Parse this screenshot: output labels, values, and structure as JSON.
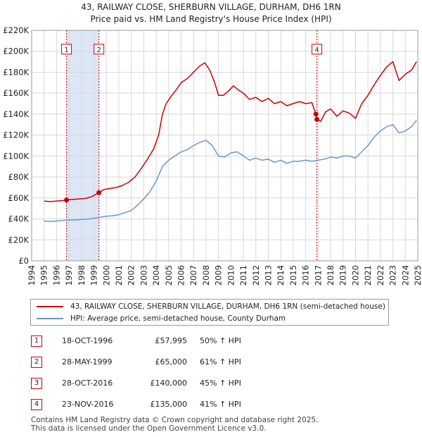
{
  "title": {
    "line1": "43, RAILWAY CLOSE, SHERBURN VILLAGE, DURHAM, DH6 1RN",
    "line2": "Price paid vs. HM Land Registry's House Price Index (HPI)"
  },
  "colors": {
    "property": "#cc0000",
    "hpi": "#6a96cc",
    "shade": "#dde6f5",
    "grid": "#d8d8d8",
    "marker_border": "#cc0000"
  },
  "chart_data": {
    "type": "line",
    "xlim": [
      1994,
      2025
    ],
    "ylim": [
      0,
      220000
    ],
    "x_ticks": [
      "1994",
      "1995",
      "1996",
      "1997",
      "1998",
      "1999",
      "2000",
      "2001",
      "2002",
      "2003",
      "2004",
      "2005",
      "2006",
      "2007",
      "2008",
      "2009",
      "2010",
      "2011",
      "2012",
      "2013",
      "2014",
      "2015",
      "2016",
      "2017",
      "2018",
      "2019",
      "2020",
      "2021",
      "2022",
      "2023",
      "2024",
      "2025"
    ],
    "y_ticks": [
      {
        "value": 0,
        "label": "£0"
      },
      {
        "value": 20000,
        "label": "£20K"
      },
      {
        "value": 40000,
        "label": "£40K"
      },
      {
        "value": 60000,
        "label": "£60K"
      },
      {
        "value": 80000,
        "label": "£80K"
      },
      {
        "value": 100000,
        "label": "£100K"
      },
      {
        "value": 120000,
        "label": "£120K"
      },
      {
        "value": 140000,
        "label": "£140K"
      },
      {
        "value": 160000,
        "label": "£160K"
      },
      {
        "value": 180000,
        "label": "£180K"
      },
      {
        "value": 200000,
        "label": "£200K"
      },
      {
        "value": 220000,
        "label": "£220K"
      }
    ],
    "shaded_range": [
      1996.8,
      1999.4
    ],
    "events": [
      {
        "num": "1",
        "x": 1996.8,
        "label_y": 202000
      },
      {
        "num": "2",
        "x": 1999.4,
        "label_y": 202000
      },
      {
        "num": "4",
        "x": 2016.9,
        "label_y": 202000
      }
    ],
    "sales": [
      {
        "x": 1996.8,
        "y": 57995
      },
      {
        "x": 1999.4,
        "y": 65000
      },
      {
        "x": 2016.82,
        "y": 140000
      },
      {
        "x": 2016.9,
        "y": 135000
      }
    ],
    "series": [
      {
        "name": "43, RAILWAY CLOSE, SHERBURN VILLAGE, DURHAM, DH6 1RN (semi-detached house)",
        "color_key": "property",
        "points": [
          [
            1995.0,
            57000
          ],
          [
            1995.5,
            56500
          ],
          [
            1996.0,
            57000
          ],
          [
            1996.5,
            57500
          ],
          [
            1996.8,
            57995
          ],
          [
            1997.3,
            58500
          ],
          [
            1997.8,
            59000
          ],
          [
            1998.3,
            59500
          ],
          [
            1998.8,
            61000
          ],
          [
            1999.4,
            65000
          ],
          [
            1999.8,
            68000
          ],
          [
            2000.3,
            69000
          ],
          [
            2000.8,
            70000
          ],
          [
            2001.3,
            72000
          ],
          [
            2001.8,
            75000
          ],
          [
            2002.3,
            80000
          ],
          [
            2002.8,
            88000
          ],
          [
            2003.3,
            97000
          ],
          [
            2003.8,
            107000
          ],
          [
            2004.2,
            120000
          ],
          [
            2004.5,
            140000
          ],
          [
            2004.8,
            150000
          ],
          [
            2005.2,
            157000
          ],
          [
            2005.6,
            163000
          ],
          [
            2006.0,
            170000
          ],
          [
            2006.5,
            174000
          ],
          [
            2007.0,
            180000
          ],
          [
            2007.5,
            186000
          ],
          [
            2007.9,
            189000
          ],
          [
            2008.3,
            182000
          ],
          [
            2008.7,
            170000
          ],
          [
            2009.0,
            158000
          ],
          [
            2009.4,
            158000
          ],
          [
            2009.8,
            162000
          ],
          [
            2010.2,
            167000
          ],
          [
            2010.6,
            163000
          ],
          [
            2011.0,
            160000
          ],
          [
            2011.5,
            154000
          ],
          [
            2012.0,
            156000
          ],
          [
            2012.5,
            152000
          ],
          [
            2013.0,
            155000
          ],
          [
            2013.5,
            150000
          ],
          [
            2014.0,
            152000
          ],
          [
            2014.5,
            148000
          ],
          [
            2015.0,
            150000
          ],
          [
            2015.5,
            152000
          ],
          [
            2016.0,
            150000
          ],
          [
            2016.5,
            151000
          ],
          [
            2016.82,
            140000
          ],
          [
            2016.9,
            135000
          ],
          [
            2017.2,
            133000
          ],
          [
            2017.6,
            142000
          ],
          [
            2018.0,
            145000
          ],
          [
            2018.5,
            138000
          ],
          [
            2019.0,
            143000
          ],
          [
            2019.5,
            141000
          ],
          [
            2020.0,
            136000
          ],
          [
            2020.5,
            150000
          ],
          [
            2021.0,
            158000
          ],
          [
            2021.5,
            168000
          ],
          [
            2022.0,
            177000
          ],
          [
            2022.5,
            185000
          ],
          [
            2023.0,
            190000
          ],
          [
            2023.5,
            172000
          ],
          [
            2024.0,
            178000
          ],
          [
            2024.5,
            182000
          ],
          [
            2024.9,
            190000
          ]
        ]
      },
      {
        "name": "HPI: Average price, semi-detached house, County Durham",
        "color_key": "hpi",
        "points": [
          [
            1995.0,
            38000
          ],
          [
            1995.5,
            37500
          ],
          [
            1996.0,
            38000
          ],
          [
            1996.5,
            38500
          ],
          [
            1997.0,
            39000
          ],
          [
            1997.5,
            39000
          ],
          [
            1998.0,
            39500
          ],
          [
            1998.5,
            39800
          ],
          [
            1999.0,
            40500
          ],
          [
            1999.5,
            41500
          ],
          [
            2000.0,
            42500
          ],
          [
            2000.5,
            43000
          ],
          [
            2001.0,
            44000
          ],
          [
            2001.5,
            46000
          ],
          [
            2002.0,
            48000
          ],
          [
            2002.5,
            53000
          ],
          [
            2003.0,
            59000
          ],
          [
            2003.5,
            66000
          ],
          [
            2004.0,
            76000
          ],
          [
            2004.5,
            90000
          ],
          [
            2005.0,
            96000
          ],
          [
            2005.5,
            100000
          ],
          [
            2006.0,
            104000
          ],
          [
            2006.5,
            106000
          ],
          [
            2007.0,
            110000
          ],
          [
            2007.5,
            113000
          ],
          [
            2008.0,
            115000
          ],
          [
            2008.5,
            110000
          ],
          [
            2009.0,
            100000
          ],
          [
            2009.5,
            99000
          ],
          [
            2010.0,
            103000
          ],
          [
            2010.5,
            104000
          ],
          [
            2011.0,
            100000
          ],
          [
            2011.5,
            96000
          ],
          [
            2012.0,
            98000
          ],
          [
            2012.5,
            96000
          ],
          [
            2013.0,
            97000
          ],
          [
            2013.5,
            94000
          ],
          [
            2014.0,
            96000
          ],
          [
            2014.5,
            93000
          ],
          [
            2015.0,
            95000
          ],
          [
            2015.5,
            95000
          ],
          [
            2016.0,
            96000
          ],
          [
            2016.5,
            95000
          ],
          [
            2017.0,
            96000
          ],
          [
            2017.5,
            97000
          ],
          [
            2018.0,
            99000
          ],
          [
            2018.5,
            98000
          ],
          [
            2019.0,
            100000
          ],
          [
            2019.5,
            100000
          ],
          [
            2020.0,
            98000
          ],
          [
            2020.5,
            104000
          ],
          [
            2021.0,
            110000
          ],
          [
            2021.5,
            118000
          ],
          [
            2022.0,
            124000
          ],
          [
            2022.5,
            128000
          ],
          [
            2023.0,
            130000
          ],
          [
            2023.5,
            122000
          ],
          [
            2024.0,
            124000
          ],
          [
            2024.5,
            128000
          ],
          [
            2024.9,
            134000
          ]
        ]
      }
    ]
  },
  "legend": {
    "property_label": "43, RAILWAY CLOSE, SHERBURN VILLAGE, DURHAM, DH6 1RN (semi-detached house)",
    "hpi_label": "HPI: Average price, semi-detached house, County Durham"
  },
  "transactions": [
    {
      "num": "1",
      "date": "18-OCT-1996",
      "price": "£57,995",
      "hpi": "50% ↑ HPI"
    },
    {
      "num": "2",
      "date": "28-MAY-1999",
      "price": "£65,000",
      "hpi": "61% ↑ HPI"
    },
    {
      "num": "3",
      "date": "28-OCT-2016",
      "price": "£140,000",
      "hpi": "45% ↑ HPI"
    },
    {
      "num": "4",
      "date": "23-NOV-2016",
      "price": "£135,000",
      "hpi": "41% ↑ HPI"
    }
  ],
  "footer": {
    "line1": "Contains HM Land Registry data © Crown copyright and database right 2025.",
    "line2": "This data is licensed under the Open Government Licence v3.0."
  }
}
